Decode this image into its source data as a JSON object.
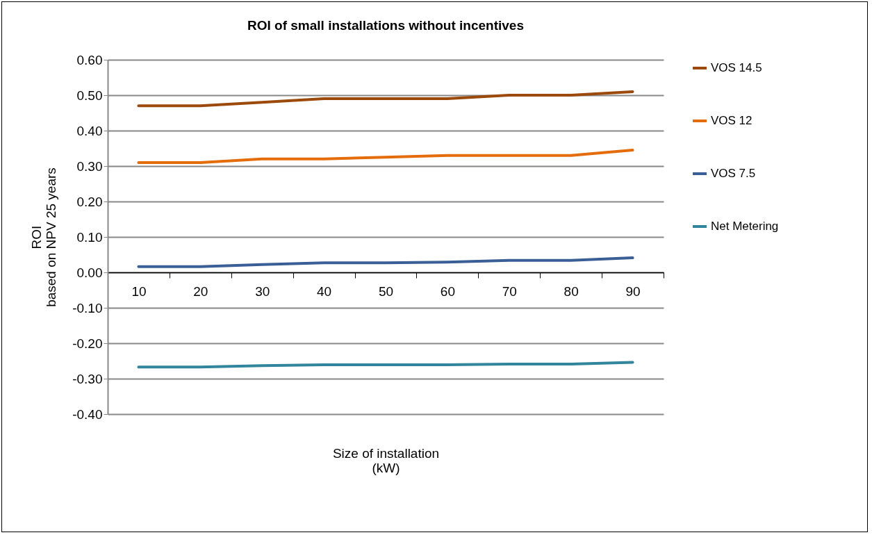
{
  "chart_data": {
    "type": "line",
    "title": "ROI of small installations without incentives",
    "xlabel": "Size of installation\n(kW)",
    "ylabel": "ROI\nbased on NPV 25 years",
    "categories": [
      "10",
      "20",
      "30",
      "40",
      "50",
      "60",
      "70",
      "80",
      "90"
    ],
    "series": [
      {
        "name": "VOS 14.5",
        "color": "#9c4a0c",
        "values": [
          0.47,
          0.47,
          0.48,
          0.49,
          0.49,
          0.49,
          0.5,
          0.5,
          0.51
        ]
      },
      {
        "name": "VOS 12",
        "color": "#e46c0a",
        "values": [
          0.31,
          0.31,
          0.32,
          0.32,
          0.325,
          0.33,
          0.33,
          0.33,
          0.345
        ]
      },
      {
        "name": "VOS 7.5",
        "color": "#3a5f96",
        "values": [
          0.016,
          0.016,
          0.022,
          0.027,
          0.027,
          0.029,
          0.034,
          0.034,
          0.041
        ]
      },
      {
        "name": "Net Metering",
        "color": "#31859c",
        "values": [
          -0.267,
          -0.267,
          -0.263,
          -0.261,
          -0.261,
          -0.261,
          -0.259,
          -0.259,
          -0.254
        ]
      }
    ],
    "ylim": [
      -0.4,
      0.6
    ],
    "yticks": [
      {
        "value": -0.4,
        "label": "-0.40"
      },
      {
        "value": -0.3,
        "label": "-0.30"
      },
      {
        "value": -0.2,
        "label": "-0.20"
      },
      {
        "value": -0.1,
        "label": "-0.10"
      },
      {
        "value": 0,
        "label": "0.00"
      },
      {
        "value": 0.1,
        "label": "0.10"
      },
      {
        "value": 0.2,
        "label": "0.20"
      },
      {
        "value": 0.3,
        "label": "0.30"
      },
      {
        "value": 0.4,
        "label": "0.40"
      },
      {
        "value": 0.5,
        "label": "0.50"
      },
      {
        "value": 0.6,
        "label": "0.60"
      }
    ],
    "grid": "y",
    "legend": "right",
    "marker": "none",
    "line_style": "solid"
  }
}
